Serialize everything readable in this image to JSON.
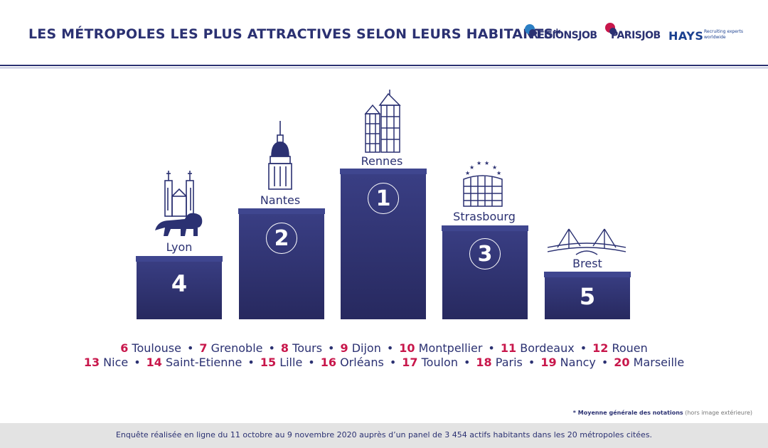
{
  "header": {
    "title": "LES MÉTROPOLES LES PLUS ATTRACTIVES SELON LEURS HABITANTS*",
    "logos": {
      "regionsjob": "REGIONSJOB",
      "parisjob": "PARISJOB",
      "hays": "HAYS",
      "hays_tagline_1": "Recruiting experts",
      "hays_tagline_2": "worldwide"
    }
  },
  "chart_data": {
    "type": "bar",
    "categories": [
      "Lyon",
      "Nantes",
      "Rennes",
      "Strasbourg",
      "Brest"
    ],
    "ranks": [
      "4",
      "2",
      "1",
      "3",
      "5"
    ],
    "values": [
      4,
      2,
      1,
      3,
      5
    ],
    "title": "LES MÉTROPOLES LES PLUS ATTRACTIVES SELON LEURS HABITANTS*",
    "xlabel": "",
    "ylabel": ""
  },
  "icons": {
    "lyon": "lyon-basilica-lion-icon",
    "nantes": "nantes-dome-icon",
    "rennes": "rennes-timbered-houses-icon",
    "strasbourg": "strasbourg-parliament-stars-icon",
    "brest": "brest-bridge-icon"
  },
  "other_cities": [
    [
      {
        "rank": "6",
        "name": "Toulouse"
      },
      {
        "rank": "7",
        "name": "Grenoble"
      },
      {
        "rank": "8",
        "name": "Tours"
      },
      {
        "rank": "9",
        "name": "Dijon"
      },
      {
        "rank": "10",
        "name": "Montpellier"
      },
      {
        "rank": "11",
        "name": "Bordeaux"
      },
      {
        "rank": "12",
        "name": "Rouen"
      }
    ],
    [
      {
        "rank": "13",
        "name": "Nice"
      },
      {
        "rank": "14",
        "name": "Saint-Etienne"
      },
      {
        "rank": "15",
        "name": "Lille"
      },
      {
        "rank": "16",
        "name": "Orléans"
      },
      {
        "rank": "17",
        "name": "Toulon"
      },
      {
        "rank": "18",
        "name": "Paris"
      },
      {
        "rank": "19",
        "name": "Nancy"
      },
      {
        "rank": "20",
        "name": "Marseille"
      }
    ]
  ],
  "separator": "•",
  "footnote": {
    "bold": "* Moyenne générale des notations",
    "grey": "(hors image extérieure)"
  },
  "footer": {
    "text": "Enquête réalisée en ligne du 11 octobre au 9 novembre 2020 auprès d’un panel de 3 454 actifs habitants dans les 20 métropoles citées."
  },
  "colors": {
    "navy": "#2b3172",
    "accent": "#c8174b",
    "footer_bg": "#e3e3e3"
  }
}
